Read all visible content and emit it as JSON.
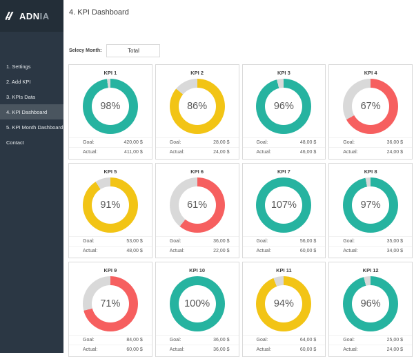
{
  "sidebar": {
    "logo": {
      "text_primary": "ADN",
      "text_secondary": "IA"
    },
    "items": [
      {
        "label": "1. Settings",
        "active": false
      },
      {
        "label": "2. Add KPI",
        "active": false
      },
      {
        "label": "3. KPIs Data",
        "active": false
      },
      {
        "label": "4. KPI Dashboard",
        "active": true
      },
      {
        "label": "5. KPI Month Dashboard",
        "active": false
      },
      {
        "label": "Contact",
        "active": false
      }
    ],
    "colors": {
      "background": "#2b3744",
      "logo_band": "#232e38",
      "active_item": "#4a555f"
    }
  },
  "header": {
    "title": "4. KPI Dashboard"
  },
  "filter": {
    "label": "Selecy Month:",
    "value": "Total"
  },
  "kpi_labels": {
    "goal": "Goal:",
    "actual": "Actual:"
  },
  "colors": {
    "teal": "#26b3a0",
    "yellow": "#f2c415",
    "red": "#f65f5f",
    "remainder": "#d9d9d9",
    "percent_text": "#595959"
  },
  "kpis": [
    {
      "name": "KPI 1",
      "percent_label": "98%",
      "percent_value": 98,
      "goal": "420,00 $",
      "actual": "411,00 $",
      "color": "teal"
    },
    {
      "name": "KPI 2",
      "percent_label": "86%",
      "percent_value": 86,
      "goal": "28,00 $",
      "actual": "24,00 $",
      "color": "yellow"
    },
    {
      "name": "KPI 3",
      "percent_label": "96%",
      "percent_value": 96,
      "goal": "48,00 $",
      "actual": "46,00 $",
      "color": "teal"
    },
    {
      "name": "KPI 4",
      "percent_label": "67%",
      "percent_value": 67,
      "goal": "36,00 $",
      "actual": "24,00 $",
      "color": "red"
    },
    {
      "name": "KPI 5",
      "percent_label": "91%",
      "percent_value": 91,
      "goal": "53,00 $",
      "actual": "48,00 $",
      "color": "yellow"
    },
    {
      "name": "KPI 6",
      "percent_label": "61%",
      "percent_value": 61,
      "goal": "36,00 $",
      "actual": "22,00 $",
      "color": "red"
    },
    {
      "name": "KPI 7",
      "percent_label": "107%",
      "percent_value": 107,
      "goal": "56,00 $",
      "actual": "60,00 $",
      "color": "teal"
    },
    {
      "name": "KPI 8",
      "percent_label": "97%",
      "percent_value": 97,
      "goal": "35,00 $",
      "actual": "34,00 $",
      "color": "teal"
    },
    {
      "name": "KPI 9",
      "percent_label": "71%",
      "percent_value": 71,
      "goal": "84,00 $",
      "actual": "60,00 $",
      "color": "red"
    },
    {
      "name": "KPI 10",
      "percent_label": "100%",
      "percent_value": 100,
      "goal": "36,00 $",
      "actual": "36,00 $",
      "color": "teal"
    },
    {
      "name": "KPI 11",
      "percent_label": "94%",
      "percent_value": 94,
      "goal": "64,00 $",
      "actual": "60,00 $",
      "color": "yellow"
    },
    {
      "name": "KPI 12",
      "percent_label": "96%",
      "percent_value": 96,
      "goal": "25,00 $",
      "actual": "24,00 $",
      "color": "teal"
    }
  ]
}
